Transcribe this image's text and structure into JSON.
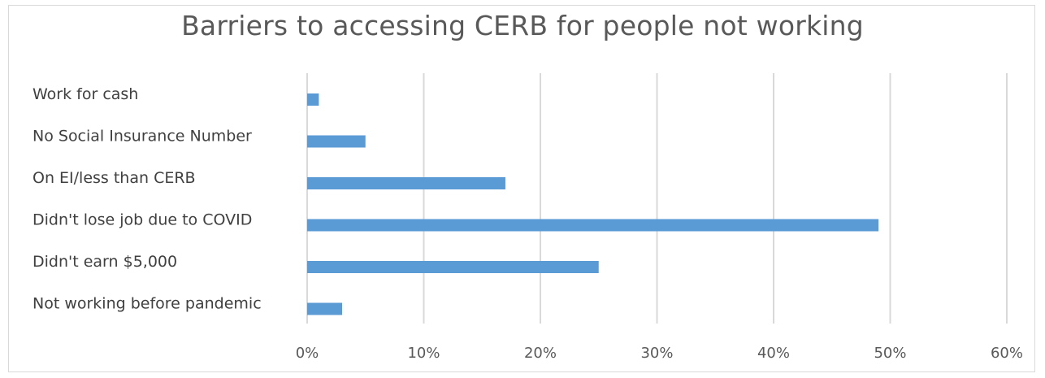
{
  "chart_data": {
    "type": "bar",
    "orientation": "horizontal",
    "title": "Barriers to accessing CERB for people not working",
    "categories": [
      "Work for cash",
      "No Social Insurance Number",
      "On EI/less than CERB",
      "Didn't lose job due to COVID",
      "Didn't earn $5,000",
      "Not working before pandemic"
    ],
    "series": [
      {
        "values": [
          0.01,
          0.05,
          0.17,
          0.49,
          0.25,
          0.03
        ]
      }
    ],
    "xlim": [
      0,
      0.6
    ],
    "xticks": [
      "0%",
      "10%",
      "20%",
      "30%",
      "40%",
      "50%",
      "60%"
    ],
    "xlabel": "",
    "ylabel": "",
    "grid": "vertical",
    "legend": "none",
    "bar_color": "#5b9bd5",
    "grid_color": "#d9d9d9"
  }
}
